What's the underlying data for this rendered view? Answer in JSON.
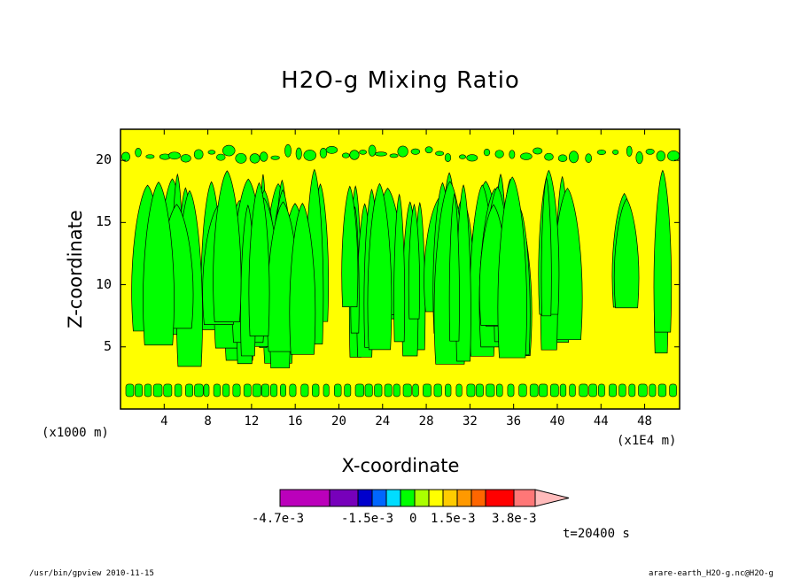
{
  "chart_data": {
    "type": "heatmap",
    "title": "H2O-g Mixing Ratio",
    "xlabel": "X-coordinate",
    "ylabel": "Z-coordinate",
    "x_unit_note": "(x1000 m)",
    "x_scale_note": "(x1E4 m)",
    "x_ticks": [
      "4",
      "8",
      "12",
      "16",
      "20",
      "24",
      "28",
      "32",
      "36",
      "40",
      "44",
      "48"
    ],
    "y_ticks": [
      "5",
      "10",
      "15",
      "20"
    ],
    "xlim": [
      0,
      51.2
    ],
    "ylim": [
      0,
      22.5
    ],
    "colorbar": {
      "colors": [
        "#bb00bb",
        "#7700bb",
        "#0000cc",
        "#0066ff",
        "#00ddff",
        "#00ff00",
        "#aaff00",
        "#ffff00",
        "#ffcc00",
        "#ff9900",
        "#ff6600",
        "#ff0000",
        "#ff7777",
        "#ffbbbb"
      ],
      "labels": [
        "-4.7e-3",
        "-1.5e-3",
        "0",
        "1.5e-3",
        "3.8e-3"
      ]
    },
    "field_colors": {
      "background": "#ffff00",
      "dominant": "#00ff00"
    },
    "time_label": "t=20400 s"
  },
  "footer": {
    "left": "/usr/bin/gpview  2010-11-15",
    "right": "arare-earth_H2O-g.nc@H2O-g"
  }
}
